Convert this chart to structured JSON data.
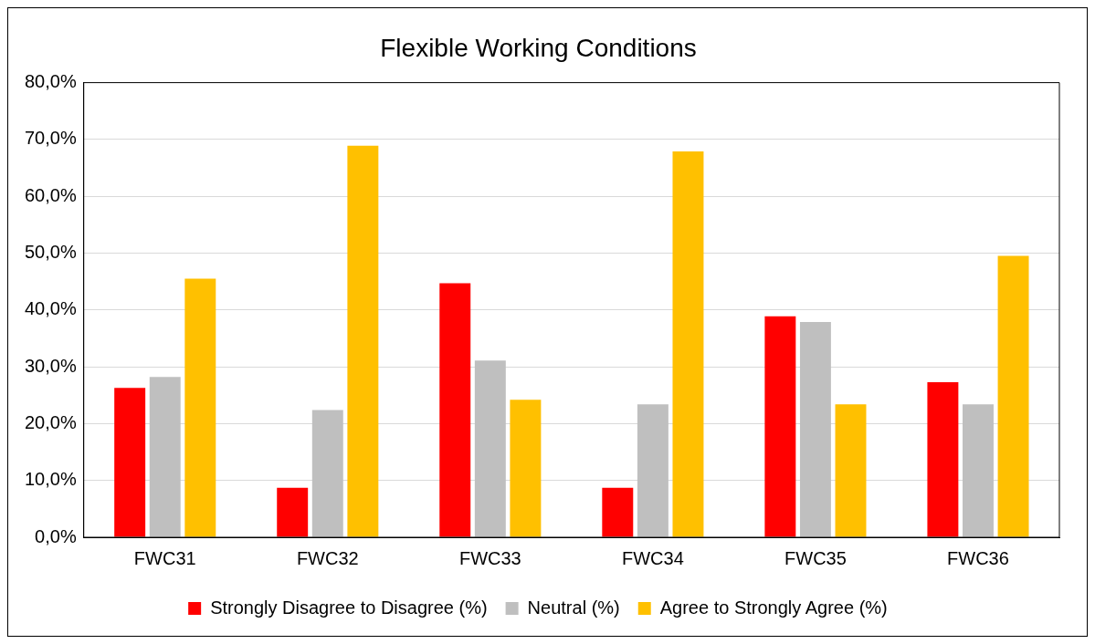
{
  "chart_data": {
    "type": "bar",
    "title": "Flexible Working Conditions",
    "categories": [
      "FWC31",
      "FWC32",
      "FWC33",
      "FWC34",
      "FWC35",
      "FWC36"
    ],
    "series": [
      {
        "name": "Strongly Disagree to Disagree (%)",
        "color": "#ff0000",
        "values": [
          26.3,
          8.7,
          44.7,
          8.7,
          38.9,
          27.3
        ]
      },
      {
        "name": "Neutral (%)",
        "color": "#bfbfbf",
        "values": [
          28.2,
          22.4,
          31.1,
          23.4,
          37.9,
          23.4
        ]
      },
      {
        "name": "Agree to Strongly Agree (%)",
        "color": "#ffc000",
        "values": [
          45.5,
          68.9,
          24.2,
          67.9,
          23.4,
          49.5
        ]
      }
    ],
    "ylim": [
      0,
      80
    ],
    "yticks": [
      {
        "value": 0,
        "label": "0,0%"
      },
      {
        "value": 10,
        "label": "10,0%"
      },
      {
        "value": 20,
        "label": "20,0%"
      },
      {
        "value": 30,
        "label": "30,0%"
      },
      {
        "value": 40,
        "label": "40,0%"
      },
      {
        "value": 50,
        "label": "50,0%"
      },
      {
        "value": 60,
        "label": "60,0%"
      },
      {
        "value": 70,
        "label": "70,0%"
      },
      {
        "value": 80,
        "label": "80,0%"
      }
    ],
    "grid": "y",
    "legend": "bottom"
  }
}
